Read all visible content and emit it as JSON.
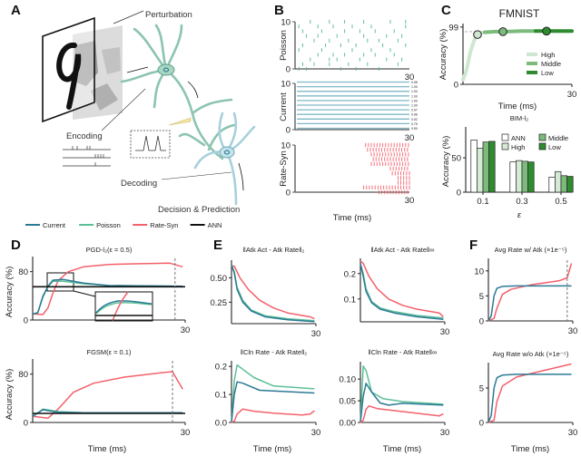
{
  "panels": {
    "a": "A",
    "b": "B",
    "c": "C",
    "d": "D",
    "e": "E",
    "f": "F"
  },
  "panel_a": {
    "perturbation": "Perturbation",
    "encoding": "Encoding",
    "decoding": "Decoding",
    "decision": "Decision & Prediction"
  },
  "legend": [
    {
      "name": "Current",
      "color": "#2b7a94"
    },
    {
      "name": "Poisson",
      "color": "#5dbf97"
    },
    {
      "name": "Rate-Syn",
      "color": "#f4606c"
    },
    {
      "name": "ANN",
      "color": "#111111"
    }
  ],
  "panel_b": {
    "ylabels": [
      "Poisson",
      "Current",
      "Rate-Syn"
    ],
    "xlabel": "Time (ms)",
    "yticks": [
      "0",
      "10"
    ],
    "xtick": "30",
    "current_values": [
      "0.98",
      "1.00",
      "1.00",
      "1.00",
      "1.00",
      "1.00",
      "0.97",
      "0.96",
      "0.92",
      "0.75",
      "0.50"
    ]
  },
  "panel_c": {
    "title": "FMNIST",
    "top_ylabel": "Accuracy (%)",
    "top_xlabel": "Time (ms)",
    "top_yticks": [
      "0",
      "99"
    ],
    "top_xtick": "30",
    "bar_title": "BIM-l₂",
    "bar_ylabel": "Accuracy (%)",
    "bar_xlabel": "ε",
    "bar_yticks": [
      "0",
      "50"
    ]
  },
  "panel_d": {
    "ylabel": "Accuracy (%)",
    "xlabel": "Time (ms)"
  },
  "panel_e": {
    "xlabel": "Time (ms)"
  },
  "panel_f": {
    "xlabel": "Time (ms)"
  },
  "chart_data": [
    {
      "id": "b_poisson",
      "type": "scatter",
      "title": "",
      "ylabel": "Poisson",
      "xlim": [
        0,
        30
      ],
      "ylim": [
        0,
        10
      ],
      "color": "#5dbf97",
      "rows": [
        [
          1,
          3,
          12,
          16,
          22
        ],
        [
          2,
          5,
          9,
          14,
          19,
          27
        ],
        [
          4,
          9,
          11,
          17,
          24,
          28
        ],
        [
          6,
          10,
          13,
          18,
          21,
          26
        ],
        [
          1,
          7,
          15,
          20,
          25
        ],
        [
          2,
          8,
          12,
          16,
          23,
          29
        ],
        [
          5,
          9,
          14,
          19,
          22,
          27
        ],
        [
          3,
          6,
          11,
          18,
          24,
          28
        ],
        [
          2,
          7,
          13,
          17,
          21,
          26
        ],
        [
          1,
          6,
          10,
          15,
          20,
          29
        ],
        [
          4,
          9,
          13,
          18,
          25,
          29
        ]
      ]
    },
    {
      "id": "b_current",
      "type": "line",
      "title": "",
      "ylabel": "Current",
      "xlim": [
        0,
        30
      ],
      "ylim": [
        0,
        10
      ],
      "color": "#7fb8c8",
      "levels": [
        0,
        1,
        2,
        3,
        4,
        5,
        6,
        7,
        8,
        9,
        10
      ]
    },
    {
      "id": "b_ratesyn",
      "type": "scatter",
      "title": "",
      "ylabel": "Rate-Syn",
      "xlim": [
        0,
        30
      ],
      "ylim": [
        0,
        10
      ],
      "color": "#f4606c",
      "row_start": [
        22,
        18,
        27,
        27,
        25.5,
        25,
        20,
        20.5,
        20,
        19,
        18.5
      ]
    },
    {
      "id": "c_top",
      "type": "line",
      "title": "FMNIST",
      "xlabel": "Time (ms)",
      "ylabel": "Accuracy (%)",
      "xlim": [
        0,
        30
      ],
      "ylim": [
        0,
        105
      ],
      "yticks": [
        0,
        99
      ],
      "ytick_labels": [
        "0",
        "99"
      ],
      "xtick_label": "30",
      "reference": 91,
      "series": [
        {
          "name": "High",
          "color": "#cfe6cf",
          "x": [
            0,
            1,
            2,
            3,
            4,
            5,
            6
          ],
          "y": [
            8,
            25,
            55,
            75,
            85,
            89,
            90
          ]
        },
        {
          "name": "Middle",
          "color": "#7cbb7c",
          "x": [
            6,
            9,
            12,
            16,
            20
          ],
          "y": [
            90,
            91,
            91,
            92,
            92
          ]
        },
        {
          "name": "Low",
          "color": "#2f8b2f",
          "x": [
            20,
            25,
            30
          ],
          "y": [
            92,
            92,
            92
          ]
        }
      ],
      "markers": [
        {
          "x": 4,
          "y": 86,
          "series": "High"
        },
        {
          "x": 11,
          "y": 91,
          "series": "Middle"
        },
        {
          "x": 23,
          "y": 92,
          "series": "Low"
        }
      ]
    },
    {
      "id": "c_bar",
      "type": "bar",
      "title": "BIM-l₂",
      "xlabel": "ε",
      "ylabel": "Accuracy (%)",
      "ylim": [
        0,
        95
      ],
      "categories": [
        "0.1",
        "0.3",
        "0.5"
      ],
      "yticks": [
        0,
        50
      ],
      "ytick_labels": [
        "0",
        "50"
      ],
      "series": [
        {
          "name": "ANN",
          "color": "#ffffff",
          "values": [
            76,
            44,
            22
          ]
        },
        {
          "name": "High",
          "color": "#d4ead4",
          "values": [
            64,
            46,
            30
          ]
        },
        {
          "name": "Middle",
          "color": "#7cbb7c",
          "values": [
            73,
            45,
            24
          ]
        },
        {
          "name": "Low",
          "color": "#2f8b2f",
          "values": [
            74,
            44,
            23
          ]
        }
      ]
    },
    {
      "id": "d_top",
      "type": "line",
      "title": "PGD-l₂(ε = 0.5)",
      "ylabel": "Accuracy (%)",
      "xlim": [
        0,
        30
      ],
      "ylim": [
        0,
        105
      ],
      "yticks": [
        0,
        80
      ],
      "ytick_labels": [
        "0",
        "80"
      ],
      "xtick_label": "30",
      "vline": 28,
      "series": [
        {
          "name": "Rate-Syn",
          "color": "#f4606c",
          "x": [
            0,
            2,
            3,
            4,
            5,
            7,
            10,
            15,
            20,
            27,
            29.5
          ],
          "y": [
            10,
            9,
            20,
            45,
            65,
            80,
            88,
            92,
            93,
            94,
            88
          ]
        },
        {
          "name": "Poisson",
          "color": "#5dbf97",
          "x": [
            0,
            1,
            2,
            3,
            4,
            6,
            10,
            15,
            29.5
          ],
          "y": [
            10,
            12,
            40,
            55,
            64,
            64,
            60,
            57,
            56
          ]
        },
        {
          "name": "Current",
          "color": "#2b7a94",
          "x": [
            0,
            1,
            2,
            3,
            4,
            6,
            10,
            15,
            29.5
          ],
          "y": [
            10,
            12,
            38,
            56,
            66,
            67,
            61,
            57,
            56
          ]
        },
        {
          "name": "ANN",
          "color": "#111111",
          "x": [
            0,
            30
          ],
          "y": [
            55,
            55
          ]
        }
      ]
    },
    {
      "id": "d_bot",
      "type": "line",
      "title": "FGSM(ε = 0.1)",
      "ylabel": "Accuracy (%)",
      "xlabel": "Time (ms)",
      "xlim": [
        0,
        30
      ],
      "ylim": [
        0,
        105
      ],
      "yticks": [
        0,
        80
      ],
      "ytick_labels": [
        "0",
        "80"
      ],
      "xtick_label": "30",
      "vline": 27.5,
      "series": [
        {
          "name": "Rate-Syn",
          "color": "#f4606c",
          "x": [
            0,
            3,
            5,
            8,
            12,
            18,
            26,
            27.5,
            29.5
          ],
          "y": [
            10,
            7,
            22,
            50,
            65,
            75,
            83,
            84,
            55
          ]
        },
        {
          "name": "Poisson",
          "color": "#5dbf97",
          "x": [
            0,
            2,
            5,
            10,
            29.5
          ],
          "y": [
            10,
            22,
            18,
            16,
            16
          ]
        },
        {
          "name": "Current",
          "color": "#2b7a94",
          "x": [
            0,
            2,
            5,
            10,
            29.5
          ],
          "y": [
            10,
            21,
            17,
            16,
            16
          ]
        },
        {
          "name": "ANN",
          "color": "#111111",
          "x": [
            0,
            30
          ],
          "y": [
            15,
            15
          ]
        }
      ]
    },
    {
      "id": "e_tl",
      "type": "line",
      "title": "‖Atk Act - Atk Rate‖₂",
      "xlim": [
        0,
        30
      ],
      "ylim": [
        0.03,
        0.68
      ],
      "yticks": [
        0.25,
        0.5
      ],
      "ytick_labels": [
        "0.25",
        "0.50"
      ],
      "xtick_label": "30",
      "series": [
        {
          "name": "Rate-Syn",
          "color": "#f4606c",
          "x": [
            0,
            1,
            3,
            6,
            10,
            15,
            20,
            28,
            29.5
          ],
          "y": [
            0.62,
            0.62,
            0.5,
            0.38,
            0.27,
            0.19,
            0.14,
            0.1,
            0.08
          ]
        },
        {
          "name": "Poisson",
          "color": "#5dbf97",
          "x": [
            0,
            1,
            2,
            4,
            7,
            12,
            20,
            29.5
          ],
          "y": [
            0.63,
            0.56,
            0.4,
            0.27,
            0.17,
            0.11,
            0.08,
            0.06
          ]
        },
        {
          "name": "Current",
          "color": "#2b7a94",
          "x": [
            0,
            1,
            2,
            4,
            7,
            12,
            20,
            29.5
          ],
          "y": [
            0.63,
            0.55,
            0.38,
            0.25,
            0.16,
            0.1,
            0.07,
            0.05
          ]
        }
      ]
    },
    {
      "id": "e_tr",
      "type": "line",
      "title": "‖Atk Act - Atk Rate‖∞",
      "xlim": [
        0,
        30
      ],
      "ylim": [
        0.01,
        0.26
      ],
      "yticks": [
        0.1,
        0.2
      ],
      "ytick_labels": [
        "0.1",
        "0.2"
      ],
      "xtick_label": "30",
      "series": [
        {
          "name": "Rate-Syn",
          "color": "#f4606c",
          "x": [
            0,
            1,
            3,
            6,
            10,
            15,
            20,
            28,
            29.5
          ],
          "y": [
            0.25,
            0.24,
            0.19,
            0.14,
            0.1,
            0.075,
            0.06,
            0.045,
            0.03
          ]
        },
        {
          "name": "Poisson",
          "color": "#5dbf97",
          "x": [
            0,
            1,
            2,
            4,
            7,
            12,
            20,
            29.5
          ],
          "y": [
            0.24,
            0.2,
            0.14,
            0.09,
            0.065,
            0.05,
            0.035,
            0.025
          ]
        },
        {
          "name": "Current",
          "color": "#2b7a94",
          "x": [
            0,
            1,
            2,
            4,
            7,
            12,
            20,
            29.5
          ],
          "y": [
            0.24,
            0.19,
            0.13,
            0.085,
            0.06,
            0.045,
            0.03,
            0.02
          ]
        }
      ]
    },
    {
      "id": "e_bl",
      "type": "line",
      "title": "‖Cln Rate - Atk Rate‖₂",
      "xlabel": "Time (ms)",
      "xlim": [
        0,
        30
      ],
      "ylim": [
        0,
        0.22
      ],
      "yticks": [
        0,
        0.1,
        0.2
      ],
      "ytick_labels": [
        "0.0",
        "0.1",
        "0.2"
      ],
      "xtick_label": "30",
      "series": [
        {
          "name": "Poisson",
          "color": "#5dbf97",
          "x": [
            0,
            1,
            2,
            4,
            8,
            15,
            29.5
          ],
          "y": [
            0,
            0.15,
            0.205,
            0.19,
            0.16,
            0.13,
            0.12
          ]
        },
        {
          "name": "Current",
          "color": "#2b7a94",
          "x": [
            0,
            1,
            2,
            4,
            10,
            29.5
          ],
          "y": [
            0,
            0.1,
            0.145,
            0.14,
            0.115,
            0.105
          ]
        },
        {
          "name": "Rate-Syn",
          "color": "#f4606c",
          "x": [
            0,
            1,
            2,
            4,
            8,
            15,
            25,
            28,
            29.5
          ],
          "y": [
            0,
            0.005,
            0.03,
            0.048,
            0.04,
            0.033,
            0.027,
            0.03,
            0.042
          ]
        }
      ]
    },
    {
      "id": "e_br",
      "type": "line",
      "title": "‖Cln Rate - Atk Rate‖∞",
      "xlabel": "Time (ms)",
      "xlim": [
        0,
        30
      ],
      "ylim": [
        0,
        0.14
      ],
      "yticks": [
        0,
        0.05,
        0.1
      ],
      "ytick_labels": [
        "0.00",
        "0.05",
        "0.10"
      ],
      "xtick_label": "30",
      "series": [
        {
          "name": "Poisson",
          "color": "#5dbf97",
          "x": [
            0,
            1,
            2,
            4,
            8,
            15,
            29.5
          ],
          "y": [
            0,
            0.13,
            0.12,
            0.07,
            0.055,
            0.048,
            0.042
          ]
        },
        {
          "name": "Current",
          "color": "#2b7a94",
          "x": [
            0,
            1,
            2,
            4,
            7,
            10,
            15,
            29.5
          ],
          "y": [
            0,
            0.06,
            0.09,
            0.07,
            0.045,
            0.04,
            0.044,
            0.04
          ]
        },
        {
          "name": "Rate-Syn",
          "color": "#f4606c",
          "x": [
            0,
            1,
            2,
            3,
            6,
            15,
            28,
            29.5
          ],
          "y": [
            0,
            0.005,
            0.03,
            0.038,
            0.032,
            0.025,
            0.015,
            0.02
          ]
        }
      ]
    },
    {
      "id": "f_top",
      "type": "line",
      "title": "Avg Rate w/ Atk (×1e⁻⁵)",
      "xlim": [
        0,
        30
      ],
      "ylim": [
        0,
        12.5
      ],
      "yticks": [
        0,
        5,
        10
      ],
      "ytick_labels": [
        "0",
        "5",
        "10"
      ],
      "xtick_label": "30",
      "vline": 28,
      "series": [
        {
          "name": "Rate-Syn",
          "color": "#f4606c",
          "x": [
            0,
            2,
            3,
            5,
            8,
            15,
            25,
            28,
            29.5
          ],
          "y": [
            0,
            0.5,
            2.5,
            5.3,
            6.3,
            7.2,
            8,
            8.6,
            11.5
          ]
        },
        {
          "name": "Current",
          "color": "#2b7a94",
          "x": [
            0,
            1,
            2,
            3,
            5,
            10,
            29.5
          ],
          "y": [
            0,
            1,
            5,
            6.5,
            6.9,
            7,
            7
          ]
        }
      ]
    },
    {
      "id": "f_bot",
      "type": "line",
      "title": "Avg Rate w/o Atk (×1e⁻⁵)",
      "xlabel": "Time (ms)",
      "xlim": [
        0,
        30
      ],
      "ylim": [
        0,
        8.7
      ],
      "yticks": [
        0,
        5
      ],
      "ytick_labels": [
        "0",
        "5"
      ],
      "xtick_label": "30",
      "series": [
        {
          "name": "Rate-Syn",
          "color": "#f4606c",
          "x": [
            0,
            2,
            3,
            5,
            10,
            17,
            29.5
          ],
          "y": [
            0,
            0.3,
            3,
            5.3,
            6.6,
            7.3,
            8.5
          ]
        },
        {
          "name": "Current",
          "color": "#2b7a94",
          "x": [
            0,
            1,
            2,
            3,
            5,
            10,
            29.5
          ],
          "y": [
            0,
            1,
            5,
            6.5,
            6.9,
            7,
            7
          ]
        }
      ]
    }
  ]
}
